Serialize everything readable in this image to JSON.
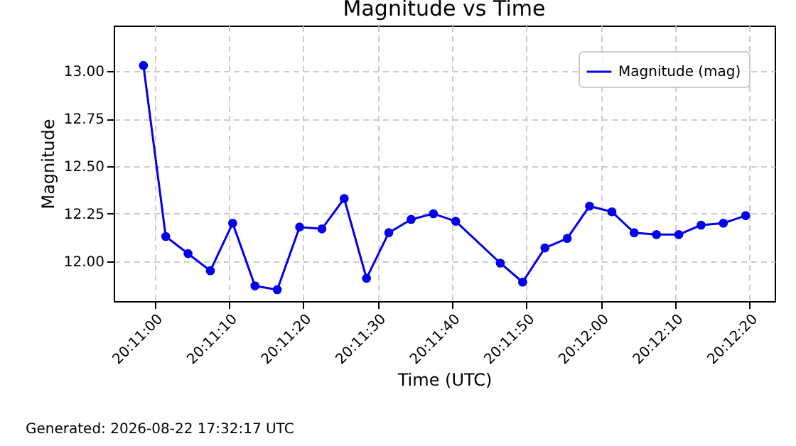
{
  "chart_data": {
    "type": "line",
    "title": "Magnitude vs Time",
    "xlabel": "Time (UTC)",
    "ylabel": "Magnitude",
    "x": [
      20.182917,
      20.18375,
      20.184583,
      20.185417,
      20.18625,
      20.187083,
      20.187917,
      20.18875,
      20.189583,
      20.190417,
      20.19125,
      20.192083,
      20.192917,
      20.19375,
      20.194583,
      20.19625,
      20.197083,
      20.197917,
      20.19875,
      20.199583,
      20.200417,
      20.20125,
      20.202083,
      20.202917,
      20.20375,
      20.204583,
      20.205417
    ],
    "series": [
      {
        "name": "Magnitude (mag)",
        "color": "#0000ee",
        "values": [
          13.03,
          12.13,
          12.04,
          11.95,
          12.2,
          11.87,
          11.85,
          12.18,
          12.17,
          12.33,
          11.91,
          12.15,
          12.22,
          12.25,
          12.21,
          11.99,
          11.89,
          12.07,
          12.12,
          12.29,
          12.26,
          12.15,
          12.14,
          12.14,
          12.19,
          12.2,
          12.24
        ]
      }
    ],
    "xlim": [
      20.181806,
      20.2065
    ],
    "xticks": [
      {
        "value": 20.183333,
        "label": "20:11:00"
      },
      {
        "value": 20.186111,
        "label": "20:11:10"
      },
      {
        "value": 20.188889,
        "label": "20:11:20"
      },
      {
        "value": 20.191667,
        "label": "20:11:30"
      },
      {
        "value": 20.194444,
        "label": "20:11:40"
      },
      {
        "value": 20.197222,
        "label": "20:11:50"
      },
      {
        "value": 20.2,
        "label": "20:12:00"
      },
      {
        "value": 20.202778,
        "label": "20:12:10"
      },
      {
        "value": 20.205556,
        "label": "20:12:20"
      }
    ],
    "ylim": [
      11.79,
      13.24
    ],
    "yticks": [
      {
        "value": 12,
        "label": "12.00"
      },
      {
        "value": 12.25,
        "label": "12.25"
      },
      {
        "value": 12.5,
        "label": "12.50"
      },
      {
        "value": 12.75,
        "label": "12.75"
      },
      {
        "value": 13,
        "label": "13.00"
      }
    ],
    "grid": true,
    "legend": "top right",
    "marker": "circle",
    "line_style": "solid",
    "annotations": [
      "Generated: 2026-08-22 17:32:17 UTC"
    ]
  }
}
